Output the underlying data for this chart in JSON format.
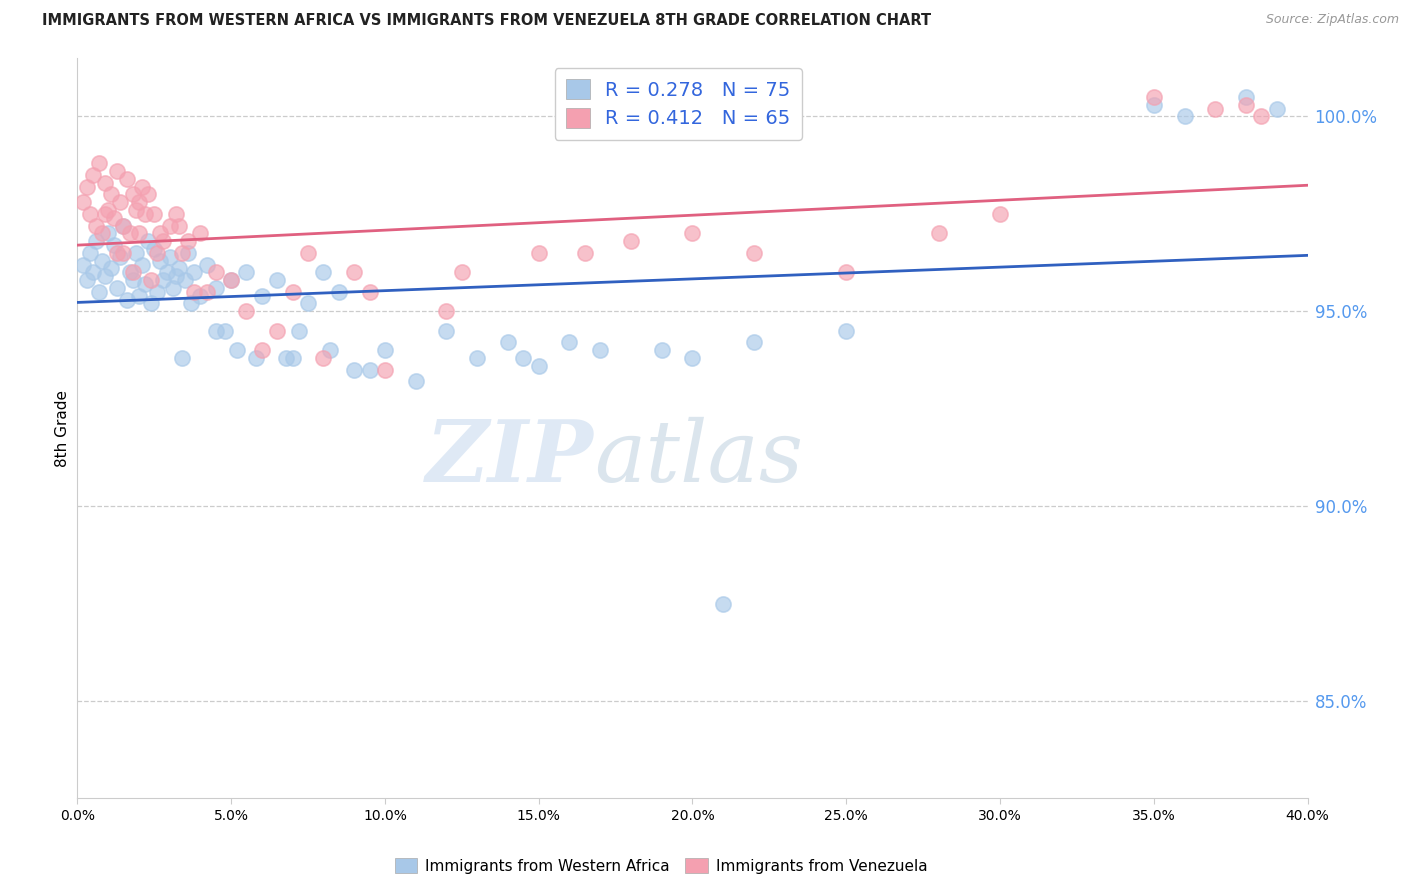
{
  "title": "IMMIGRANTS FROM WESTERN AFRICA VS IMMIGRANTS FROM VENEZUELA 8TH GRADE CORRELATION CHART",
  "source": "Source: ZipAtlas.com",
  "ylabel": "8th Grade",
  "right_yticks": [
    85.0,
    90.0,
    95.0,
    100.0
  ],
  "blue_label": "Immigrants from Western Africa",
  "pink_label": "Immigrants from Venezuela",
  "blue_R": 0.278,
  "blue_N": 75,
  "pink_R": 0.412,
  "pink_N": 65,
  "blue_color": "#a8c8e8",
  "pink_color": "#f4a0b0",
  "blue_line_color": "#3060c0",
  "pink_line_color": "#e06080",
  "watermark_zip": "ZIP",
  "watermark_atlas": "atlas",
  "ylim_min": 82.5,
  "ylim_max": 101.5,
  "xlim_min": 0,
  "xlim_max": 40,
  "blue_x": [
    0.2,
    0.3,
    0.4,
    0.5,
    0.6,
    0.7,
    0.8,
    0.9,
    1.0,
    1.1,
    1.2,
    1.3,
    1.4,
    1.5,
    1.6,
    1.7,
    1.8,
    1.9,
    2.0,
    2.1,
    2.2,
    2.3,
    2.4,
    2.5,
    2.6,
    2.7,
    2.8,
    2.9,
    3.0,
    3.1,
    3.2,
    3.3,
    3.5,
    3.6,
    3.8,
    4.0,
    4.2,
    4.5,
    5.0,
    5.5,
    6.0,
    6.5,
    7.0,
    7.5,
    8.0,
    8.5,
    9.0,
    10.0,
    11.0,
    12.0,
    13.0,
    14.0,
    15.0,
    17.0,
    20.0,
    22.0,
    35.0,
    36.0,
    38.0,
    39.0,
    4.5,
    5.2,
    6.8,
    7.2,
    8.2,
    9.5,
    14.5,
    16.0,
    19.0,
    25.0,
    3.4,
    3.7,
    4.8,
    5.8,
    21.0
  ],
  "blue_y": [
    96.2,
    95.8,
    96.5,
    96.0,
    96.8,
    95.5,
    96.3,
    95.9,
    97.0,
    96.1,
    96.7,
    95.6,
    96.4,
    97.2,
    95.3,
    96.0,
    95.8,
    96.5,
    95.4,
    96.2,
    95.7,
    96.8,
    95.2,
    96.6,
    95.5,
    96.3,
    95.8,
    96.0,
    96.4,
    95.6,
    95.9,
    96.1,
    95.8,
    96.5,
    96.0,
    95.4,
    96.2,
    95.6,
    95.8,
    96.0,
    95.4,
    95.8,
    93.8,
    95.2,
    96.0,
    95.5,
    93.5,
    94.0,
    93.2,
    94.5,
    93.8,
    94.2,
    93.6,
    94.0,
    93.8,
    94.2,
    100.3,
    100.0,
    100.5,
    100.2,
    94.5,
    94.0,
    93.8,
    94.5,
    94.0,
    93.5,
    93.8,
    94.2,
    94.0,
    94.5,
    93.8,
    95.2,
    94.5,
    93.8,
    87.5
  ],
  "pink_x": [
    0.2,
    0.3,
    0.4,
    0.5,
    0.6,
    0.7,
    0.8,
    0.9,
    1.0,
    1.1,
    1.2,
    1.3,
    1.4,
    1.5,
    1.6,
    1.7,
    1.8,
    1.9,
    2.0,
    2.1,
    2.2,
    2.3,
    2.5,
    2.7,
    2.8,
    3.0,
    3.2,
    3.4,
    3.6,
    3.8,
    4.0,
    4.5,
    5.0,
    6.0,
    7.0,
    8.0,
    9.0,
    10.0,
    12.0,
    15.0,
    18.0,
    22.0,
    25.0,
    28.0,
    35.0,
    37.0,
    38.5,
    1.5,
    2.0,
    2.4,
    1.3,
    0.9,
    1.8,
    2.6,
    3.3,
    4.2,
    5.5,
    7.5,
    6.5,
    9.5,
    12.5,
    16.5,
    20.0,
    30.0,
    38.0
  ],
  "pink_y": [
    97.8,
    98.2,
    97.5,
    98.5,
    97.2,
    98.8,
    97.0,
    98.3,
    97.6,
    98.0,
    97.4,
    98.6,
    97.8,
    97.2,
    98.4,
    97.0,
    98.0,
    97.6,
    97.8,
    98.2,
    97.5,
    98.0,
    97.5,
    97.0,
    96.8,
    97.2,
    97.5,
    96.5,
    96.8,
    95.5,
    97.0,
    96.0,
    95.8,
    94.0,
    95.5,
    93.8,
    96.0,
    93.5,
    95.0,
    96.5,
    96.8,
    96.5,
    96.0,
    97.0,
    100.5,
    100.2,
    100.0,
    96.5,
    97.0,
    95.8,
    96.5,
    97.5,
    96.0,
    96.5,
    97.2,
    95.5,
    95.0,
    96.5,
    94.5,
    95.5,
    96.0,
    96.5,
    97.0,
    97.5,
    100.3
  ]
}
